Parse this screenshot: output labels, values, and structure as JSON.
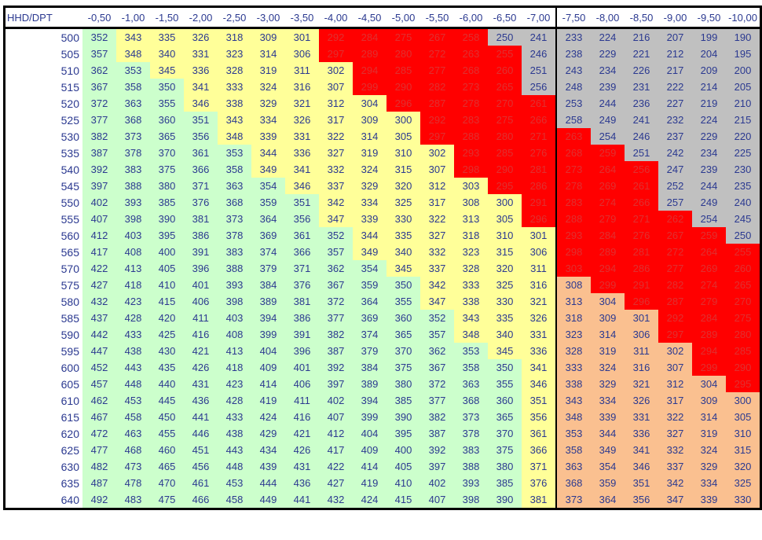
{
  "table": {
    "corner": "HHD/DPT",
    "columns": [
      "-0,50",
      "-1,00",
      "-1,50",
      "-2,00",
      "-2,50",
      "-3,00",
      "-3,50",
      "-4,00",
      "-4,50",
      "-5,00",
      "-5,50",
      "-6,00",
      "-6,50",
      "-7,00",
      "-7,50",
      "-8,00",
      "-8,50",
      "-9,00",
      "-9,50",
      "-10,00"
    ],
    "rows": [
      {
        "label": 500,
        "values": [
          352,
          343,
          335,
          326,
          318,
          309,
          301,
          292,
          284,
          275,
          267,
          258,
          250,
          241,
          233,
          224,
          216,
          207,
          199,
          190
        ]
      },
      {
        "label": 505,
        "values": [
          357,
          348,
          340,
          331,
          323,
          314,
          306,
          297,
          289,
          280,
          272,
          263,
          255,
          246,
          238,
          229,
          221,
          212,
          204,
          195
        ]
      },
      {
        "label": 510,
        "values": [
          362,
          353,
          345,
          336,
          328,
          319,
          311,
          302,
          294,
          285,
          277,
          268,
          260,
          251,
          243,
          234,
          226,
          217,
          209,
          200
        ]
      },
      {
        "label": 515,
        "values": [
          367,
          358,
          350,
          341,
          333,
          324,
          316,
          307,
          299,
          290,
          282,
          273,
          265,
          256,
          248,
          239,
          231,
          222,
          214,
          205
        ]
      },
      {
        "label": 520,
        "values": [
          372,
          363,
          355,
          346,
          338,
          329,
          321,
          312,
          304,
          296,
          287,
          278,
          270,
          261,
          253,
          244,
          236,
          227,
          219,
          210
        ]
      },
      {
        "label": 525,
        "values": [
          377,
          368,
          360,
          351,
          343,
          334,
          326,
          317,
          309,
          300,
          292,
          283,
          275,
          266,
          258,
          249,
          241,
          232,
          224,
          215
        ]
      },
      {
        "label": 530,
        "values": [
          382,
          373,
          365,
          356,
          348,
          339,
          331,
          322,
          314,
          305,
          297,
          288,
          280,
          271,
          263,
          254,
          246,
          237,
          229,
          220
        ]
      },
      {
        "label": 535,
        "values": [
          387,
          378,
          370,
          361,
          353,
          344,
          336,
          327,
          319,
          310,
          302,
          293,
          285,
          276,
          268,
          259,
          251,
          242,
          234,
          225
        ]
      },
      {
        "label": 540,
        "values": [
          392,
          383,
          375,
          366,
          358,
          349,
          341,
          332,
          324,
          315,
          307,
          298,
          290,
          281,
          273,
          264,
          256,
          247,
          239,
          230
        ]
      },
      {
        "label": 545,
        "values": [
          397,
          388,
          380,
          371,
          363,
          354,
          346,
          337,
          329,
          320,
          312,
          303,
          295,
          286,
          278,
          269,
          261,
          252,
          244,
          235
        ]
      },
      {
        "label": 550,
        "values": [
          402,
          393,
          385,
          376,
          368,
          359,
          351,
          342,
          334,
          325,
          317,
          308,
          300,
          291,
          283,
          274,
          266,
          257,
          249,
          240
        ]
      },
      {
        "label": 555,
        "values": [
          407,
          398,
          390,
          381,
          373,
          364,
          356,
          347,
          339,
          330,
          322,
          313,
          305,
          296,
          288,
          279,
          271,
          262,
          254,
          245
        ]
      },
      {
        "label": 560,
        "values": [
          412,
          403,
          395,
          386,
          378,
          369,
          361,
          352,
          344,
          335,
          327,
          318,
          310,
          301,
          293,
          284,
          276,
          267,
          259,
          250
        ]
      },
      {
        "label": 565,
        "values": [
          417,
          408,
          400,
          391,
          383,
          374,
          366,
          357,
          349,
          340,
          332,
          323,
          315,
          306,
          298,
          289,
          281,
          272,
          264,
          255
        ]
      },
      {
        "label": 570,
        "values": [
          422,
          413,
          405,
          396,
          388,
          379,
          371,
          362,
          354,
          345,
          337,
          328,
          320,
          311,
          303,
          294,
          286,
          277,
          269,
          260
        ]
      },
      {
        "label": 575,
        "values": [
          427,
          418,
          410,
          401,
          393,
          384,
          376,
          367,
          359,
          350,
          342,
          333,
          325,
          316,
          308,
          299,
          291,
          282,
          274,
          265
        ]
      },
      {
        "label": 580,
        "values": [
          432,
          423,
          415,
          406,
          398,
          389,
          381,
          372,
          364,
          355,
          347,
          338,
          330,
          321,
          313,
          304,
          296,
          287,
          279,
          270
        ]
      },
      {
        "label": 585,
        "values": [
          437,
          428,
          420,
          411,
          403,
          394,
          386,
          377,
          369,
          360,
          352,
          343,
          335,
          326,
          318,
          309,
          301,
          292,
          284,
          275
        ]
      },
      {
        "label": 590,
        "values": [
          442,
          433,
          425,
          416,
          408,
          399,
          391,
          382,
          374,
          365,
          357,
          348,
          340,
          331,
          323,
          314,
          306,
          297,
          289,
          280
        ]
      },
      {
        "label": 595,
        "values": [
          447,
          438,
          430,
          421,
          413,
          404,
          396,
          387,
          379,
          370,
          362,
          353,
          345,
          336,
          328,
          319,
          311,
          302,
          294,
          285
        ]
      },
      {
        "label": 600,
        "values": [
          452,
          443,
          435,
          426,
          418,
          409,
          401,
          392,
          384,
          375,
          367,
          358,
          350,
          341,
          333,
          324,
          316,
          307,
          299,
          290
        ]
      },
      {
        "label": 605,
        "values": [
          457,
          448,
          440,
          431,
          423,
          414,
          406,
          397,
          389,
          380,
          372,
          363,
          355,
          346,
          338,
          329,
          321,
          312,
          304,
          295
        ]
      },
      {
        "label": 610,
        "values": [
          462,
          453,
          445,
          436,
          428,
          419,
          411,
          402,
          394,
          385,
          377,
          368,
          360,
          351,
          343,
          334,
          326,
          317,
          309,
          300
        ]
      },
      {
        "label": 615,
        "values": [
          467,
          458,
          450,
          441,
          433,
          424,
          416,
          407,
          399,
          390,
          382,
          373,
          365,
          356,
          348,
          339,
          331,
          322,
          314,
          305
        ]
      },
      {
        "label": 620,
        "values": [
          472,
          463,
          455,
          446,
          438,
          429,
          421,
          412,
          404,
          395,
          387,
          378,
          370,
          361,
          353,
          344,
          336,
          327,
          319,
          310
        ]
      },
      {
        "label": 625,
        "values": [
          477,
          468,
          460,
          451,
          443,
          434,
          426,
          417,
          409,
          400,
          392,
          383,
          375,
          366,
          358,
          349,
          341,
          332,
          324,
          315
        ]
      },
      {
        "label": 630,
        "values": [
          482,
          473,
          465,
          456,
          448,
          439,
          431,
          422,
          414,
          405,
          397,
          388,
          380,
          371,
          363,
          354,
          346,
          337,
          329,
          320
        ]
      },
      {
        "label": 635,
        "values": [
          487,
          478,
          470,
          461,
          453,
          444,
          436,
          427,
          419,
          410,
          402,
          393,
          385,
          376,
          368,
          359,
          351,
          342,
          334,
          325
        ]
      },
      {
        "label": 640,
        "values": [
          492,
          483,
          475,
          466,
          458,
          449,
          441,
          432,
          424,
          415,
          407,
          398,
          390,
          381,
          373,
          364,
          356,
          347,
          339,
          330
        ]
      }
    ],
    "cell_colors": {
      "palette": {
        "g": "#ccffcc",
        "y": "#ffff99",
        "r": "#ff0000",
        "a": "#c0c0c0",
        "o": "#fac090"
      },
      "text": {
        "g": "#2b3990",
        "y": "#2b3990",
        "r": "#e03030",
        "a": "#2b3990",
        "o": "#2b3990"
      },
      "rows": [
        "gyyyyyyrrrrraaaaaaaa",
        "gyyyyyyrrrrrraaaaaaa",
        "ggyyyyyyrrrrraaaaaaa",
        "gggyyyyyrrrrraaaaaaa",
        "gggyyyyyyrrrrraaaaaa",
        "ggggyyyyyyrrrraaaaaa",
        "ggggyyyyyyrrrrraaaaa",
        "gggggyyyyyyrrrrraaaa",
        "gggggyyyyyyrrrrrraaa",
        "ggggggyyyyyyrrrrraaa",
        "gggggggyyyyyyrrrraaa",
        "gggggggyyyyyyrrrrraa",
        "ggggggggyyyyyyrrrrra",
        "ggggggggyyyyyyrrrrrr",
        "gggggggggyyyyyrrrrrr",
        "ggggggggggyyyyorrrrr",
        "ggggggggggyyyyoorrrr",
        "gggggggggggyyyooorrr",
        "gggggggggggyyyooorrr",
        "ggggggggggggyyoooorr",
        "gggggggggggggyoooorr",
        "gggggggggggggyooooor",
        "gggggggggggggyoooooo",
        "gggggggggggggyoooooo",
        "gggggggggggggyoooooo",
        "gggggggggggggyoooooo",
        "gggggggggggggyoooooo",
        "gggggggggggggyoooooo",
        "gggggggggggggyoooooo"
      ]
    }
  }
}
